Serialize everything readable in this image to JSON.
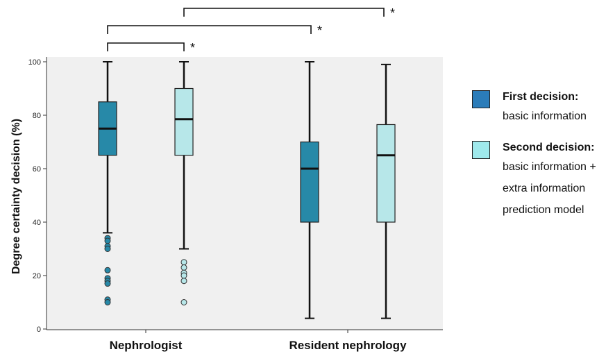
{
  "chart_data": {
    "type": "boxplot",
    "ylabel": "Degree certainty decision (%)",
    "ylim": [
      0,
      100
    ],
    "yticks": [
      "0",
      "20",
      "40",
      "60",
      "80",
      "100"
    ],
    "categories": [
      "Nephrologist",
      "Resident nephrology"
    ],
    "series": [
      {
        "name": "First decision:",
        "color": "#2789a8",
        "boxes": [
          {
            "category": "Nephrologist",
            "min": 36,
            "q1": 65,
            "median": 75,
            "q3": 85,
            "max": 100,
            "outliers": [
              34,
              33,
              31,
              30,
              22,
              19,
              18,
              17,
              11,
              10
            ]
          },
          {
            "category": "Resident nephrology",
            "min": 4,
            "q1": 40,
            "median": 60,
            "q3": 70,
            "max": 100,
            "outliers": []
          }
        ]
      },
      {
        "name": "Second decision:",
        "color": "#b7e7e9",
        "boxes": [
          {
            "category": "Nephrologist",
            "min": 30,
            "q1": 65,
            "median": 78.5,
            "q3": 90,
            "max": 100,
            "outliers": [
              25,
              23,
              21,
              20,
              18,
              10
            ]
          },
          {
            "category": "Resident nephrology",
            "min": 4,
            "q1": 40,
            "median": 65,
            "q3": 76.5,
            "max": 99,
            "outliers": []
          }
        ]
      }
    ],
    "significance": [
      {
        "from": "Nephrologist / First decision",
        "to": "Nephrologist / Second decision",
        "label": "*"
      },
      {
        "from": "Nephrologist / First decision",
        "to": "Resident nephrology / First decision",
        "label": "*"
      },
      {
        "from": "Nephrologist / Second decision",
        "to": "Resident nephrology / Second decision",
        "label": "*"
      }
    ],
    "grid": false,
    "legend_position": "right"
  },
  "legend": {
    "items": [
      {
        "title": "First decision:",
        "lines": [
          "basic information"
        ],
        "color": "#2b7cb9"
      },
      {
        "title": "Second decision:",
        "lines": [
          "basic information +",
          "extra information",
          "prediction model"
        ],
        "color": "#9fe9ec"
      }
    ]
  }
}
